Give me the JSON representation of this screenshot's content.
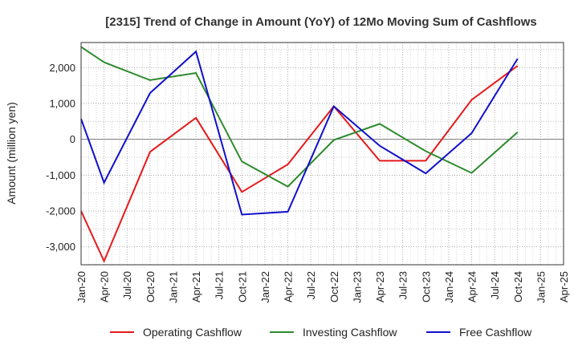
{
  "chart_data": {
    "type": "line",
    "title": "[2315]  Trend of Change in Amount (YoY) of 12Mo Moving Sum of Cashflows",
    "xlabel": "",
    "ylabel": "Amount (million yen)",
    "ylim": [
      -3500,
      2700
    ],
    "yticks": [
      -3000,
      -2000,
      -1000,
      0,
      1000,
      2000
    ],
    "ytick_labels": [
      "-3,000",
      "-2,000",
      "-1,000",
      "0",
      "1,000",
      "2,000"
    ],
    "categories": [
      "Jan-20",
      "Apr-20",
      "Jul-20",
      "Oct-20",
      "Jan-21",
      "Apr-21",
      "Jul-21",
      "Oct-21",
      "Jan-22",
      "Apr-22",
      "Jul-22",
      "Oct-22",
      "Jan-23",
      "Apr-23",
      "Jul-23",
      "Oct-23",
      "Jan-24",
      "Apr-24",
      "Jul-24",
      "Oct-24",
      "Jan-25",
      "Apr-25"
    ],
    "series": [
      {
        "name": "Operating Cashflow",
        "color": "#e41a1c",
        "values": [
          -2000,
          -3400,
          null,
          -350,
          null,
          600,
          null,
          -1470,
          null,
          -700,
          null,
          920,
          null,
          -600,
          null,
          -600,
          null,
          1100,
          null,
          2050,
          null,
          null
        ]
      },
      {
        "name": "Investing Cashflow",
        "color": "#2e8b2e",
        "values": [
          2580,
          2150,
          null,
          1650,
          null,
          1850,
          null,
          -620,
          null,
          -1320,
          null,
          -20,
          null,
          430,
          null,
          -330,
          null,
          -940,
          null,
          200,
          null,
          null
        ]
      },
      {
        "name": "Free Cashflow",
        "color": "#1010cc",
        "values": [
          570,
          -1210,
          null,
          1290,
          null,
          2450,
          null,
          -2100,
          null,
          -2020,
          null,
          920,
          null,
          -180,
          null,
          -950,
          null,
          170,
          null,
          2250,
          null,
          null
        ]
      }
    ],
    "grid": true,
    "legend_position": "bottom"
  }
}
